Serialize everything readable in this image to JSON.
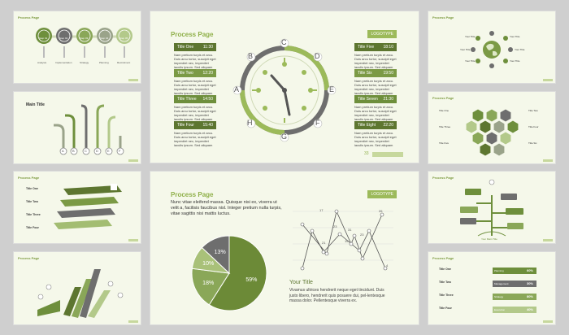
{
  "header": {
    "title": "Process Page",
    "tag": "LOGOTYPE"
  },
  "slide1": {
    "steps": [
      {
        "label": "Step 01"
      },
      {
        "label": "Step 02"
      },
      {
        "label": "Step 03"
      },
      {
        "label": "Step 04"
      },
      {
        "label": "Step 05"
      }
    ],
    "captions": [
      "Analysis",
      "Implementation",
      "Strategy",
      "Planning",
      "Recruitment"
    ]
  },
  "slide2": {
    "title": "Main Title",
    "letters": [
      "A",
      "B",
      "C",
      "D",
      "E",
      "F"
    ]
  },
  "slide3": {
    "items": [
      "Title One",
      "Title Two",
      "Title Three",
      "Title Four"
    ]
  },
  "clock": {
    "left_items": [
      {
        "title": "Title One",
        "time": "11:30"
      },
      {
        "title": "Title Two",
        "time": "12:20"
      },
      {
        "title": "Title Three",
        "time": "14:50"
      },
      {
        "title": "Title Four",
        "time": "15:40"
      }
    ],
    "right_items": [
      {
        "title": "Title Five",
        "time": "18:10"
      },
      {
        "title": "Title Six",
        "time": "19:50"
      },
      {
        "title": "Title Seven",
        "time": "21:30"
      },
      {
        "title": "Title Eight",
        "time": "22:20"
      }
    ],
    "body": "Nam pretium turpis et arcu. Duis arcu tortor, suscipit eget imperdiet nec, imperdiet iaculis ipsum. Sed aliquam",
    "dial_letters": [
      "A",
      "B",
      "C",
      "D",
      "E",
      "F",
      "G",
      "H"
    ],
    "page_number": "33"
  },
  "pie_slide": {
    "intro": "Nunc vitae eleifend massa. Quisque nisi ex, viverra ut velit a, facilisis faucibus nisl. Integer pretium nulla turpis, vitae sagittis nisi mattis luctus.",
    "your_title": "Your Title",
    "body": "Vivamus ultrices hendrerit neque eget tincidunt. Duis justo libero, hendrerit quis posuere dui, pel-lentesque massa dolor. Pellentesque viverra ex.",
    "line_labels_a": [
      "17",
      "23",
      "31",
      "21",
      "12",
      "9",
      "2",
      "7",
      "17",
      "28",
      "19",
      "22"
    ],
    "line_labels_b": [
      "26",
      "15",
      "23",
      "22",
      "4"
    ]
  },
  "chart_data": {
    "type": "pie",
    "categories": [
      "A",
      "B",
      "C",
      "D"
    ],
    "values": [
      59,
      18,
      10,
      13
    ],
    "labels": [
      "59%",
      "18%",
      "10%",
      "13%"
    ],
    "colors": [
      "#6c8a37",
      "#8aa758",
      "#a9c179",
      "#6e6e6e"
    ]
  },
  "world_slide": {
    "titles": [
      "Your Title",
      "Your Title",
      "Your Title",
      "Your Title",
      "Your Title",
      "Your Title",
      "Your Title",
      "Your Title"
    ]
  },
  "hex_slide": {
    "titles": [
      "Title One",
      "Title Two",
      "Title Three",
      "Title Four",
      "Title Five",
      "Title Six"
    ]
  },
  "tree_slide": {
    "caption": "Your Main Title"
  },
  "bars_slide": {
    "rows": [
      {
        "title": "Title One",
        "label": "Planning",
        "pct": "60%"
      },
      {
        "title": "Title Two",
        "label": "Management",
        "pct": "30%"
      },
      {
        "title": "Title Three",
        "label": "Strategy",
        "pct": "80%"
      },
      {
        "title": "Title Four",
        "label": "Execution",
        "pct": "40%"
      }
    ]
  },
  "colors": {
    "accent": "#8fb049",
    "dark": "#5d7630",
    "gray": "#777777",
    "slide_bg": "#f5f8ea"
  }
}
